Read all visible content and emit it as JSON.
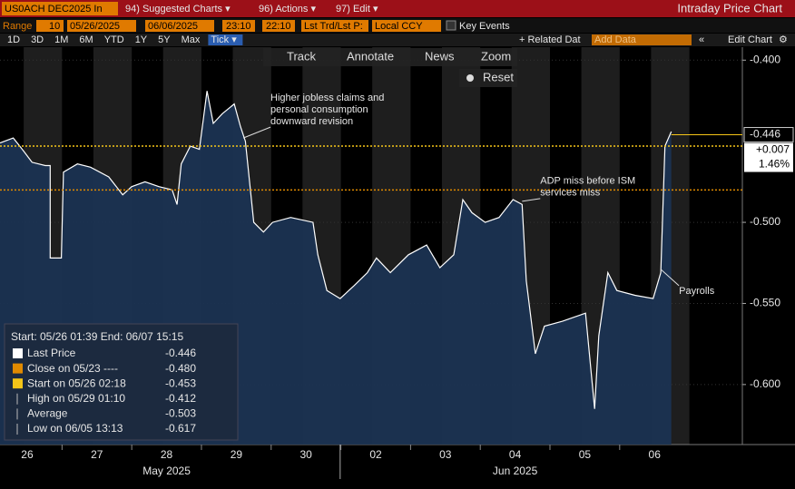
{
  "toolbar": {
    "ticker": "US0ACH DEC2025 In",
    "menus": [
      "94) Suggested Charts ▾",
      "96) Actions ▾",
      "97) Edit ▾"
    ],
    "view_title": "Intraday Price Chart",
    "range_label": "Range",
    "range_value": "10",
    "start_date": "05/26/2025",
    "end_date": "06/06/2025",
    "start_time": "23:10",
    "end_time": "22:10",
    "price_type": "Lst Trd/Lst P:",
    "currency": "Local CCY",
    "key_events": "Key Events",
    "periods": [
      "1D",
      "3D",
      "1M",
      "6M",
      "YTD",
      "1Y",
      "5Y",
      "Max",
      "Tick ▾"
    ],
    "related": "+ Related Dat",
    "add_data": "Add Data",
    "edit_chart": "Edit Chart",
    "tools": [
      "Track",
      "Annotate",
      "News",
      "Zoom"
    ],
    "reset": "Reset"
  },
  "chart_data": {
    "type": "line",
    "series": [
      {
        "name": "Last Price",
        "color": "#ffffff",
        "x": [
          0.11,
          0.3,
          0.43,
          0.57,
          0.76,
          0.83,
          0.83,
          0.99,
          1.02,
          1.22,
          1.41,
          1.67,
          1.87,
          2.0,
          2.19,
          2.39,
          2.58,
          2.65,
          2.71,
          2.84,
          2.97,
          3.08,
          3.17,
          3.3,
          3.47,
          3.56,
          3.63,
          3.69,
          3.75,
          3.89,
          4.02,
          4.28,
          4.6,
          4.67,
          4.8,
          4.99,
          5.19,
          5.38,
          5.51,
          5.71,
          5.97,
          6.23,
          6.42,
          6.62,
          6.75,
          6.88,
          7.07,
          7.27,
          7.47,
          7.6,
          7.66,
          7.79,
          7.92,
          8.18,
          8.51,
          8.64,
          8.7,
          8.83,
          8.96,
          9.22,
          9.48,
          9.59,
          9.65,
          9.74
        ],
        "values": [
          -0.451,
          -0.448,
          -0.455,
          -0.463,
          -0.465,
          -0.465,
          -0.522,
          -0.522,
          -0.469,
          -0.464,
          -0.466,
          -0.472,
          -0.483,
          -0.478,
          -0.475,
          -0.478,
          -0.48,
          -0.489,
          -0.464,
          -0.453,
          -0.455,
          -0.419,
          -0.439,
          -0.433,
          -0.427,
          -0.441,
          -0.45,
          -0.475,
          -0.5,
          -0.506,
          -0.5,
          -0.497,
          -0.5,
          -0.52,
          -0.542,
          -0.547,
          -0.539,
          -0.531,
          -0.522,
          -0.531,
          -0.52,
          -0.514,
          -0.528,
          -0.52,
          -0.486,
          -0.494,
          -0.5,
          -0.497,
          -0.486,
          -0.489,
          -0.536,
          -0.581,
          -0.564,
          -0.561,
          -0.556,
          -0.615,
          -0.57,
          -0.531,
          -0.542,
          -0.545,
          -0.547,
          -0.531,
          -0.453,
          -0.444
        ]
      }
    ],
    "xlim": [
      0.11,
      10.76
    ],
    "xticks": [
      {
        "value": 0.5,
        "label": "26"
      },
      {
        "value": 1.5,
        "label": "27"
      },
      {
        "value": 2.5,
        "label": "28"
      },
      {
        "value": 3.5,
        "label": "29"
      },
      {
        "value": 4.5,
        "label": "30"
      },
      {
        "value": 5.5,
        "label": "02"
      },
      {
        "value": 6.5,
        "label": "03"
      },
      {
        "value": 7.5,
        "label": "04"
      },
      {
        "value": 8.5,
        "label": "05"
      },
      {
        "value": 9.5,
        "label": "06"
      }
    ],
    "months": [
      {
        "value": 2.5,
        "label": "May 2025"
      },
      {
        "value": 7.5,
        "label": "Jun 2025"
      }
    ],
    "month_divider": 4.99,
    "ylim": [
      -0.637,
      -0.392
    ],
    "yticks": [
      {
        "value": -0.4,
        "label": "-0.400"
      },
      {
        "value": -0.5,
        "label": "-0.500"
      },
      {
        "value": -0.55,
        "label": "-0.550"
      },
      {
        "value": -0.6,
        "label": "-0.600"
      }
    ],
    "reference_lines": [
      {
        "value": -0.453,
        "color": "#f5c518"
      },
      {
        "value": -0.48,
        "color": "#e08a00"
      }
    ],
    "last_value": -0.446,
    "change_label": "+0.007",
    "pct_label": "1.46%",
    "annotations": [
      {
        "lines": [
          "Higher jobless claims and",
          "personal consumption",
          "downward revision"
        ],
        "x": 3.6,
        "y": -0.448
      },
      {
        "lines": [
          "ADP miss before ISM",
          "services miss"
        ],
        "x": 7.6,
        "y": -0.487
      },
      {
        "lines": [
          "Payrolls"
        ],
        "x": 9.59,
        "y": -0.529
      }
    ],
    "legend": {
      "header": "Start: 05/26 01:39 End: 06/07 15:15",
      "rows": [
        {
          "label": "Last Price",
          "value": "-0.446",
          "color": "#ffffff"
        },
        {
          "label": "Close on 05/23 ----",
          "value": "-0.480",
          "color": "#e08a00"
        },
        {
          "label": "Start on 05/26 02:18",
          "value": "-0.453",
          "color": "#f5c518"
        },
        {
          "label": "High on 05/29 01:10",
          "value": "-0.412"
        },
        {
          "label": "Average",
          "value": "-0.503"
        },
        {
          "label": "Low on 06/05 13:13",
          "value": "-0.617"
        }
      ]
    }
  }
}
